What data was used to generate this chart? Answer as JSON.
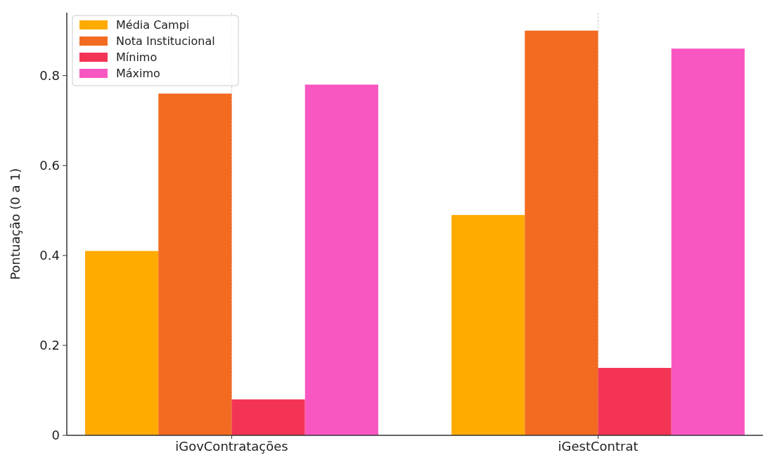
{
  "chart_data": {
    "type": "bar",
    "ylabel": "Pontuação (0 a 1)",
    "categories": [
      "iGovContratações",
      "iGestContrat"
    ],
    "series": [
      {
        "name": "Média Campi",
        "color": "#ffab00",
        "values": [
          0.41,
          0.49
        ]
      },
      {
        "name": "Nota Institucional",
        "color": "#f26b21",
        "values": [
          0.76,
          0.9
        ]
      },
      {
        "name": "Mínimo",
        "color": "#f43455",
        "values": [
          0.08,
          0.15
        ]
      },
      {
        "name": "Máximo",
        "color": "#f857c1",
        "values": [
          0.78,
          0.86
        ]
      }
    ],
    "ylim": [
      0,
      0.94
    ],
    "yticks": [
      0,
      0.2,
      0.4,
      0.6,
      0.8
    ],
    "grid": "x",
    "legend": "top left"
  }
}
